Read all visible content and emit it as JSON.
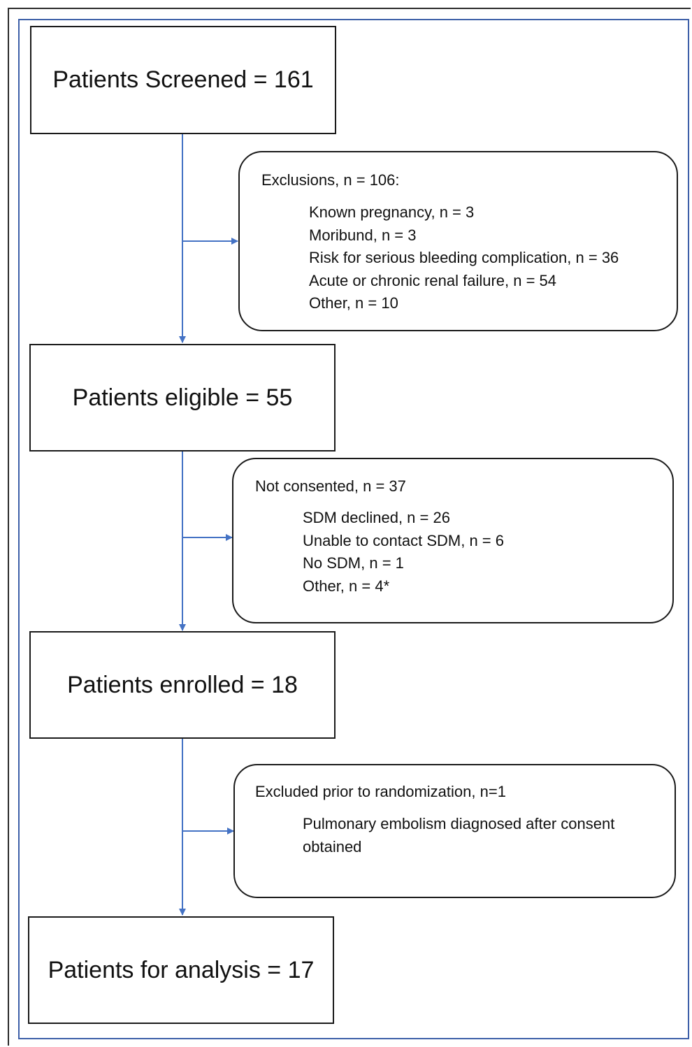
{
  "boxes": {
    "screened": "Patients Screened = 161",
    "eligible": "Patients eligible = 55",
    "enrolled": "Patients enrolled = 18",
    "analysis": "Patients for analysis = 17"
  },
  "exclusions": {
    "title": "Exclusions, n = 106:",
    "items": [
      "Known pregnancy, n = 3",
      "Moribund, n = 3",
      "Risk for serious bleeding complication, n = 36",
      "Acute or chronic renal failure, n = 54",
      "Other, n = 10"
    ]
  },
  "not_consented": {
    "title": "Not consented, n = 37",
    "items": [
      "SDM declined, n = 26",
      "Unable to contact SDM, n = 6",
      "No SDM, n = 1",
      "Other, n = 4*"
    ]
  },
  "excluded_prior": {
    "title": "Excluded prior to randomization, n=1",
    "items": [
      "Pulmonary embolism diagnosed after consent obtained"
    ]
  },
  "colors": {
    "arrow": "#4472c4",
    "frame": "#3d5fa8",
    "box_border": "#1a1a1a"
  }
}
